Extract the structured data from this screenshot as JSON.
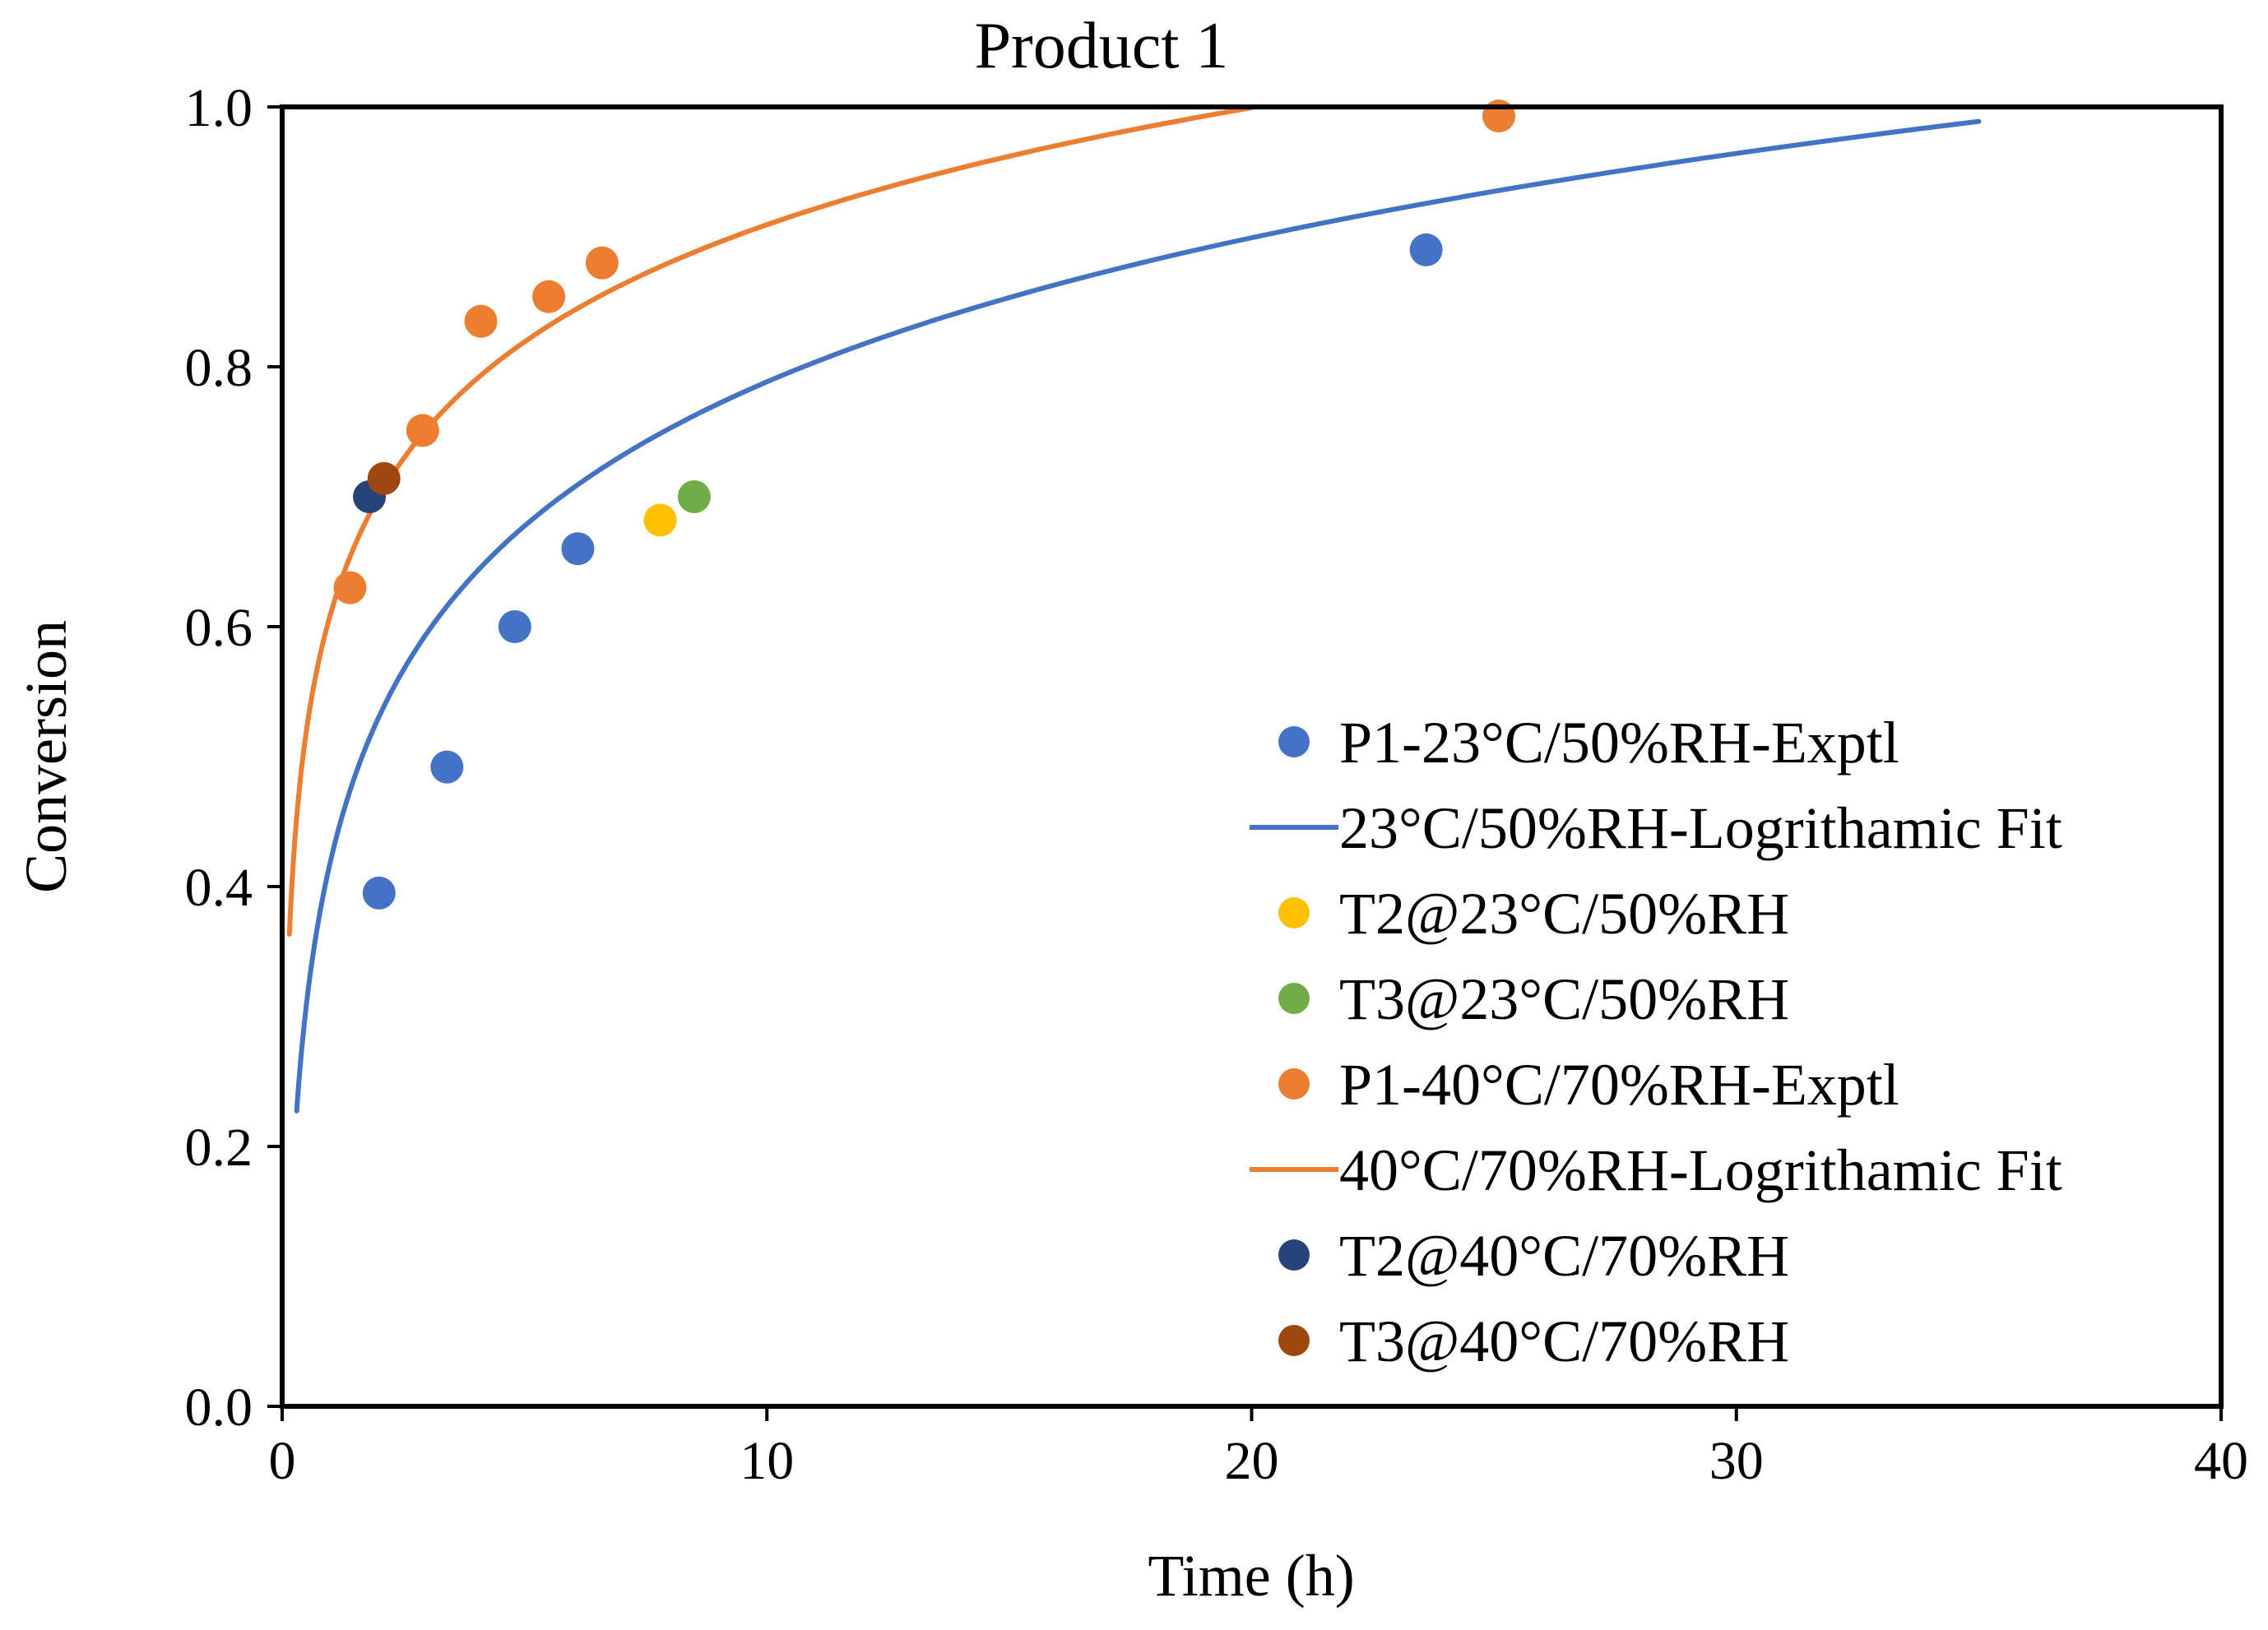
{
  "chart_data": {
    "type": "scatter",
    "title": "Product 1",
    "xlabel": "Time (h)",
    "ylabel": "Conversion",
    "xlim": [
      0,
      40
    ],
    "ylim": [
      0,
      1.0
    ],
    "xticks": [
      0,
      10,
      20,
      30,
      40
    ],
    "yticks": [
      0.0,
      0.2,
      0.4,
      0.6,
      0.8,
      1.0
    ],
    "x_tick_labels": [
      "0",
      "10",
      "20",
      "30",
      "40"
    ],
    "y_tick_labels": [
      "0.0",
      "0.2",
      "0.4",
      "0.6",
      "0.8",
      "1.0"
    ],
    "grid": false,
    "legend_position": "lower-right",
    "series": [
      {
        "name": "P1-23°C/50%RH-Exptl",
        "kind": "scatter",
        "color": "#4472C4",
        "points": [
          [
            2.0,
            0.395
          ],
          [
            3.4,
            0.492
          ],
          [
            4.8,
            0.6
          ],
          [
            6.1,
            0.66
          ],
          [
            23.6,
            0.89
          ]
        ]
      },
      {
        "name": "23°C/50%RH-Logrithamic Fit",
        "kind": "line",
        "color": "#4472C4",
        "model": "log",
        "a": 0.42,
        "b": 0.16,
        "x_range": [
          0.3,
          35
        ]
      },
      {
        "name": "T2@23°C/50%RH",
        "kind": "scatter",
        "color": "#FFC000",
        "points": [
          [
            7.8,
            0.682
          ]
        ]
      },
      {
        "name": "T3@23°C/50%RH",
        "kind": "scatter",
        "color": "#70AD47",
        "points": [
          [
            8.5,
            0.7
          ]
        ]
      },
      {
        "name": "P1-40°C/70%RH-Exptl",
        "kind": "scatter",
        "color": "#ED7D31",
        "points": [
          [
            1.4,
            0.63
          ],
          [
            2.9,
            0.751
          ],
          [
            4.1,
            0.835
          ],
          [
            5.5,
            0.854
          ],
          [
            6.6,
            0.88
          ],
          [
            25.1,
            0.993
          ]
        ]
      },
      {
        "name": "40°C/70%RH-Logrithamic Fit",
        "kind": "line",
        "color": "#ED7D31",
        "model": "log",
        "a": 0.61,
        "b": 0.13,
        "x_range": [
          0.15,
          20
        ]
      },
      {
        "name": "T2@40°C/70%RH",
        "kind": "scatter",
        "color": "#264478",
        "points": [
          [
            1.8,
            0.7
          ]
        ]
      },
      {
        "name": "T3@40°C/70%RH",
        "kind": "scatter",
        "color": "#9E480E",
        "points": [
          [
            2.1,
            0.714
          ]
        ]
      }
    ]
  }
}
